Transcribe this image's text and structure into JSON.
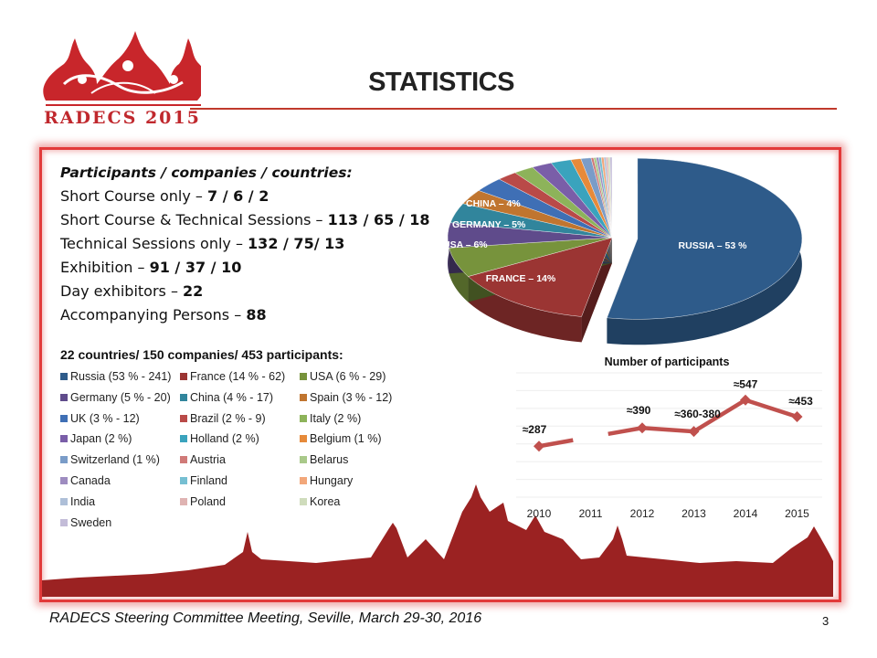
{
  "header": {
    "title": "STATISTICS",
    "logo_text": "RADECS 2015"
  },
  "stats": {
    "heading": "Participants / companies / countries:",
    "rows": [
      {
        "label": "Short Course only – ",
        "value": "7 / 6 / 2"
      },
      {
        "label": "Short Course & Technical Sessions – ",
        "value": "113 / 65 / 18"
      },
      {
        "label": "Technical Sessions only – ",
        "value": "132 / 75/ 13"
      },
      {
        "label": "Exhibition – ",
        "value": "91 / 37 / 10"
      },
      {
        "label": "Day exhibitors – ",
        "value": "22"
      },
      {
        "label": "Accompanying Persons – ",
        "value": "88"
      }
    ],
    "summary": "22 countries/ 150 companies/ 453 participants:"
  },
  "chart_data": [
    {
      "type": "pie",
      "title": "",
      "legend_position": "left",
      "slices": [
        {
          "name": "Russia (53 % - 241)",
          "value": 53,
          "color": "#2e5b8a",
          "label": "RUSSIA – 53 %"
        },
        {
          "name": "France (14 % - 62)",
          "value": 14,
          "color": "#9b3533",
          "label": "FRANCE – 14%"
        },
        {
          "name": "USA (6 % - 29)",
          "value": 6,
          "color": "#77933c",
          "label": "USA – 6%"
        },
        {
          "name": "Germany (5 % - 20)",
          "value": 5,
          "color": "#5f4b8b",
          "label": "GERMANY – 5%"
        },
        {
          "name": "China (4 % - 17)",
          "value": 4,
          "color": "#31859c",
          "label": "CHINA – 4%"
        },
        {
          "name": "Spain (3 % - 12)",
          "value": 3,
          "color": "#c0752f",
          "label": ""
        },
        {
          "name": "UK (3 % - 12)",
          "value": 3,
          "color": "#3f6fb5",
          "label": ""
        },
        {
          "name": "Brazil  (2 % - 9)",
          "value": 2,
          "color": "#b94a48",
          "label": ""
        },
        {
          "name": "Italy (2 %)",
          "value": 2,
          "color": "#8db35a",
          "label": ""
        },
        {
          "name": "Japan (2 %)",
          "value": 2,
          "color": "#7a5ea8",
          "label": ""
        },
        {
          "name": "Holland (2 %)",
          "value": 2,
          "color": "#3aa3bd",
          "label": ""
        },
        {
          "name": "Belgium (1 %)",
          "value": 1,
          "color": "#e68a3a",
          "label": ""
        },
        {
          "name": "Switzerland (1 %)",
          "value": 1,
          "color": "#7a9cc8",
          "label": ""
        },
        {
          "name": "Austria",
          "value": 0.25,
          "color": "#d07a78",
          "label": ""
        },
        {
          "name": "Belarus",
          "value": 0.25,
          "color": "#a9c98a",
          "label": ""
        },
        {
          "name": "Canada",
          "value": 0.25,
          "color": "#9e8cc0",
          "label": ""
        },
        {
          "name": "Finland",
          "value": 0.25,
          "color": "#76bfd2",
          "label": ""
        },
        {
          "name": "Hungary",
          "value": 0.25,
          "color": "#f2a77a",
          "label": ""
        },
        {
          "name": "India",
          "value": 0.2,
          "color": "#aebfd8",
          "label": ""
        },
        {
          "name": "Poland",
          "value": 0.2,
          "color": "#dfb3b2",
          "label": ""
        },
        {
          "name": "Korea",
          "value": 0.2,
          "color": "#cfdcbc",
          "label": ""
        },
        {
          "name": "Sweden",
          "value": 0.2,
          "color": "#c3bcd8",
          "label": ""
        }
      ]
    },
    {
      "type": "line",
      "title": "Number of participants",
      "categories": [
        "2010",
        "2011",
        "2012",
        "2013",
        "2014",
        "2015"
      ],
      "values": [
        287,
        null,
        390,
        370,
        547,
        453
      ],
      "data_labels": [
        "≈287",
        "",
        "≈390",
        "≈360-380",
        "≈547",
        "≈453"
      ],
      "ylim": [
        0,
        700
      ],
      "grid": true,
      "color": "#c0504d"
    }
  ],
  "footer": {
    "text": "RADECS Steering Committee Meeting, Seville, March 29-30, 2016",
    "page": "3"
  }
}
